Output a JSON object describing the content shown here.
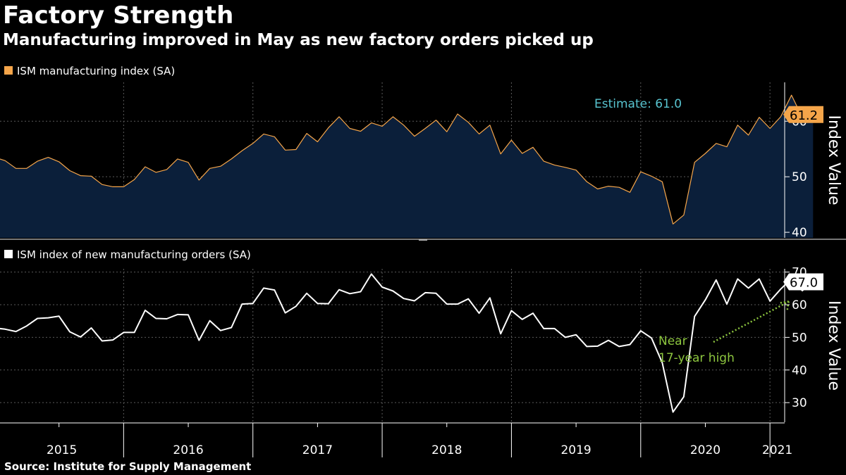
{
  "header": {
    "title": "Factory Strength",
    "subtitle": "Manufacturing improved in May as new factory orders picked up",
    "source": "Source: Institute for Supply Management"
  },
  "colors": {
    "background": "#000000",
    "area_fill": "#0b1f3a",
    "area_line": "#f5a54a",
    "orders_line": "#ffffff",
    "estimate_text": "#58c4d0",
    "annotation": "#8dc63f",
    "grid": "#5a5a5a"
  },
  "chart_data": [
    {
      "type": "area",
      "legend": "ISM manufacturing index (SA)",
      "ylabel": "Index Value",
      "ylim": [
        39,
        67
      ],
      "yticks": [
        40,
        50,
        60
      ],
      "x_start": "2015-01",
      "x_end": "2021-05",
      "series": [
        {
          "name": "ISM manufacturing index (SA)",
          "values": [
            53.5,
            52.9,
            51.5,
            51.5,
            52.8,
            53.5,
            52.7,
            51.1,
            50.2,
            50.1,
            48.6,
            48.2,
            48.2,
            49.5,
            51.8,
            50.8,
            51.3,
            53.2,
            52.6,
            49.4,
            51.5,
            51.9,
            53.2,
            54.7,
            56.0,
            57.7,
            57.2,
            54.8,
            54.9,
            57.8,
            56.3,
            58.8,
            60.8,
            58.7,
            58.2,
            59.7,
            59.1,
            60.8,
            59.3,
            57.3,
            58.7,
            60.2,
            58.1,
            61.3,
            59.8,
            57.7,
            59.3,
            54.1,
            56.6,
            54.2,
            55.3,
            52.8,
            52.1,
            51.7,
            51.2,
            49.1,
            47.8,
            48.3,
            48.1,
            47.2,
            50.9,
            50.1,
            49.1,
            41.5,
            43.1,
            52.6,
            54.2,
            56.0,
            55.4,
            59.3,
            57.5,
            60.7,
            58.7,
            60.8,
            64.7,
            60.7,
            61.2
          ]
        }
      ],
      "last_value_label": "61.2",
      "annotation": "Estimate: 61.0"
    },
    {
      "type": "line",
      "legend": "ISM index of new manufacturing orders (SA)",
      "ylabel": "Index Value",
      "ylim": [
        24,
        71
      ],
      "yticks": [
        30,
        40,
        50,
        60,
        70
      ],
      "x_start": "2015-01",
      "x_end": "2021-05",
      "series": [
        {
          "name": "ISM index of new manufacturing orders (SA)",
          "values": [
            52.9,
            52.5,
            51.8,
            53.5,
            55.8,
            56.0,
            56.5,
            51.7,
            50.1,
            52.9,
            48.9,
            49.2,
            51.5,
            51.5,
            58.3,
            55.8,
            55.7,
            57.0,
            56.9,
            49.1,
            55.1,
            52.1,
            53.0,
            60.2,
            60.4,
            65.1,
            64.5,
            57.5,
            59.5,
            63.5,
            60.4,
            60.3,
            64.6,
            63.4,
            64.0,
            69.4,
            65.4,
            64.2,
            61.9,
            61.2,
            63.7,
            63.5,
            60.2,
            60.2,
            61.8,
            57.4,
            62.1,
            51.1,
            58.2,
            55.5,
            57.4,
            52.7,
            52.7,
            50.0,
            50.8,
            47.2,
            47.3,
            49.1,
            47.2,
            47.8,
            52.0,
            49.8,
            42.2,
            27.1,
            31.8,
            56.4,
            61.5,
            67.6,
            60.2,
            67.9,
            65.1,
            67.9,
            61.1,
            64.8,
            68.0,
            64.3,
            67.0
          ]
        }
      ],
      "last_value_label": "67.0",
      "annotation_lines": [
        "Near",
        "17-year high"
      ]
    }
  ],
  "x_axis": {
    "years": [
      "2015",
      "2016",
      "2017",
      "2018",
      "2019",
      "2020",
      "2021"
    ]
  }
}
